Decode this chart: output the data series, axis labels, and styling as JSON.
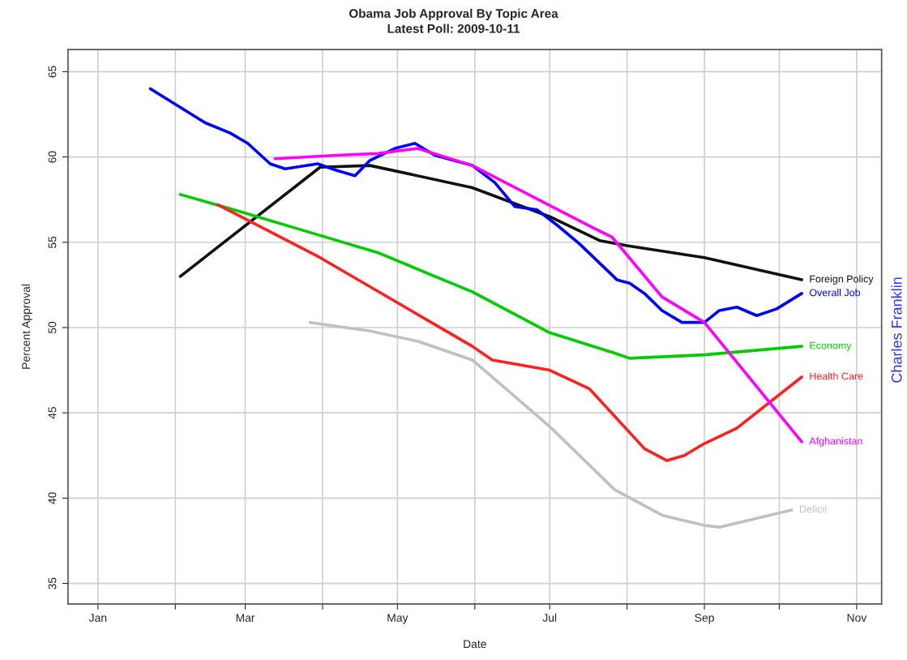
{
  "chart_data": {
    "type": "line",
    "title": "Obama Job Approval By Topic Area",
    "subtitle": "Latest Poll: 2009-10-11",
    "xlabel": "Date",
    "ylabel": "Percent Approval",
    "xlim": [
      "2008-12-20",
      "2009-11-11"
    ],
    "ylim": [
      33.8,
      66.3
    ],
    "xticks": [
      {
        "value": "2009-01-01",
        "label": "Jan"
      },
      {
        "value": "2009-02-01",
        "label": null
      },
      {
        "value": "2009-03-01",
        "label": "Mar"
      },
      {
        "value": "2009-04-01",
        "label": null
      },
      {
        "value": "2009-05-01",
        "label": "May"
      },
      {
        "value": "2009-06-01",
        "label": null
      },
      {
        "value": "2009-07-01",
        "label": "Jul"
      },
      {
        "value": "2009-08-01",
        "label": null
      },
      {
        "value": "2009-09-01",
        "label": "Sep"
      },
      {
        "value": "2009-10-01",
        "label": null
      },
      {
        "value": "2009-11-01",
        "label": "Nov"
      }
    ],
    "yticks": [
      35,
      40,
      45,
      50,
      55,
      60,
      65
    ],
    "grid": true,
    "legend": false,
    "marker": "none",
    "line_style": "solid",
    "annotations": [
      "Charles Franklin"
    ],
    "series": [
      {
        "name": "Foreign Policy",
        "color": "#111111",
        "x": [
          "2009-02-03",
          "2009-03-31",
          "2009-04-20",
          "2009-05-31",
          "2009-07-01",
          "2009-07-21",
          "2009-08-01",
          "2009-09-01",
          "2009-10-10"
        ],
        "values": [
          53.0,
          59.4,
          59.5,
          58.2,
          56.5,
          55.1,
          54.8,
          54.1,
          52.8
        ]
      },
      {
        "name": "Overall Job",
        "color": "#0000ff",
        "x": [
          "2009-01-22",
          "2009-02-02",
          "2009-02-13",
          "2009-02-23",
          "2009-03-02",
          "2009-03-11",
          "2009-03-17",
          "2009-03-30",
          "2009-04-07",
          "2009-04-14",
          "2009-04-20",
          "2009-04-30",
          "2009-05-08",
          "2009-05-16",
          "2009-05-31",
          "2009-06-09",
          "2009-06-17",
          "2009-06-26",
          "2009-07-04",
          "2009-07-13",
          "2009-07-23",
          "2009-07-28",
          "2009-08-02",
          "2009-08-08",
          "2009-08-15",
          "2009-08-23",
          "2009-09-01",
          "2009-09-07",
          "2009-09-14",
          "2009-09-22",
          "2009-09-30",
          "2009-10-10"
        ],
        "values": [
          64.0,
          63.0,
          62.0,
          61.4,
          60.8,
          59.6,
          59.3,
          59.6,
          59.2,
          58.9,
          59.8,
          60.5,
          60.8,
          60.1,
          59.5,
          58.5,
          57.1,
          56.9,
          56.0,
          54.9,
          53.5,
          52.8,
          52.6,
          52.0,
          51.0,
          50.3,
          50.3,
          51.0,
          51.2,
          50.7,
          51.1,
          52.0
        ]
      },
      {
        "name": "Economy",
        "color": "#00cc00",
        "x": [
          "2009-02-03",
          "2009-02-27",
          "2009-03-31",
          "2009-04-23",
          "2009-05-16",
          "2009-05-31",
          "2009-07-01",
          "2009-07-27",
          "2009-08-02",
          "2009-09-01",
          "2009-10-10"
        ],
        "values": [
          57.8,
          56.8,
          55.4,
          54.4,
          53.0,
          52.1,
          49.7,
          48.5,
          48.2,
          48.4,
          48.9
        ]
      },
      {
        "name": "Health Care",
        "color": "#ff2020",
        "x": [
          "2009-02-18",
          "2009-03-31",
          "2009-05-31",
          "2009-06-08",
          "2009-07-01",
          "2009-07-17",
          "2009-08-08",
          "2009-08-17",
          "2009-08-24",
          "2009-09-01",
          "2009-09-14",
          "2009-10-10"
        ],
        "values": [
          57.2,
          54.1,
          48.9,
          48.1,
          47.5,
          46.4,
          42.9,
          42.2,
          42.5,
          43.2,
          44.1,
          47.1
        ]
      },
      {
        "name": "Afghanistan",
        "color": "#ff00ff",
        "x": [
          "2009-03-13",
          "2009-04-07",
          "2009-04-23",
          "2009-05-09",
          "2009-05-31",
          "2009-07-19",
          "2009-07-26",
          "2009-08-15",
          "2009-09-01",
          "2009-10-10"
        ],
        "values": [
          59.9,
          60.1,
          60.2,
          60.5,
          59.5,
          55.8,
          55.3,
          51.8,
          50.3,
          43.3
        ]
      },
      {
        "name": "Deficit",
        "color": "#c0c0c0",
        "x": [
          "2009-03-27",
          "2009-04-20",
          "2009-05-09",
          "2009-05-31",
          "2009-07-01",
          "2009-07-27",
          "2009-08-15",
          "2009-09-01",
          "2009-09-07",
          "2009-10-06"
        ],
        "values": [
          50.3,
          49.8,
          49.2,
          48.1,
          44.2,
          40.5,
          39.0,
          38.4,
          38.3,
          39.3
        ]
      }
    ]
  }
}
